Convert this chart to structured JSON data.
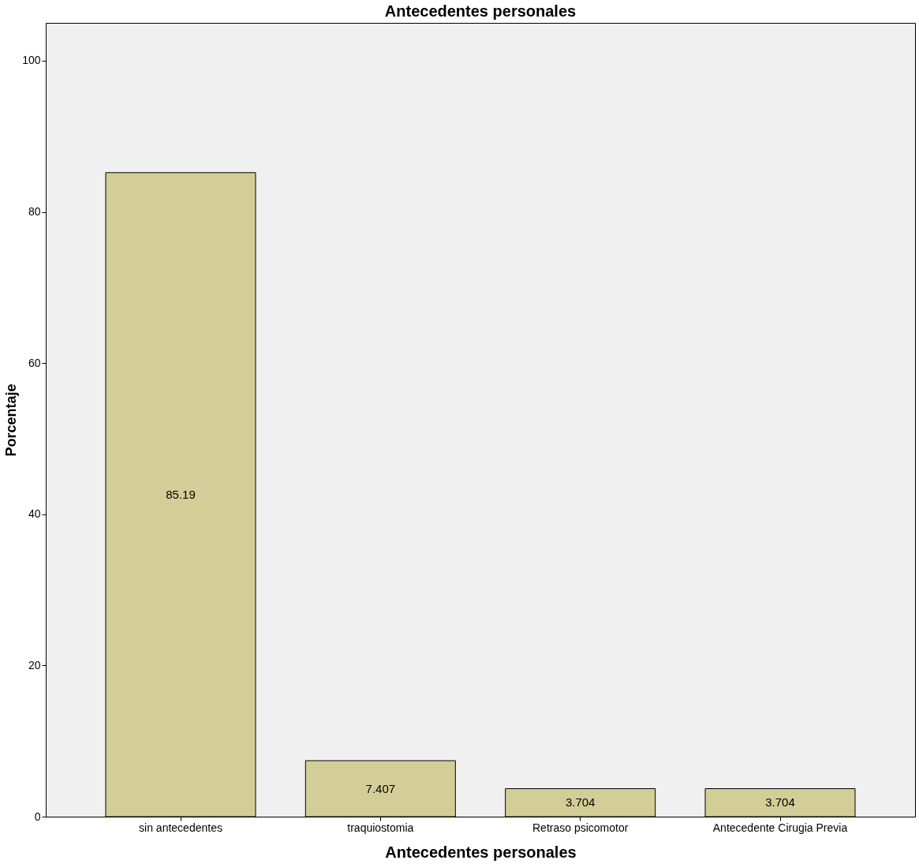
{
  "chart_data": {
    "type": "bar",
    "title": "Antecedentes personales",
    "xlabel": "Antecedentes personales",
    "ylabel": "Porcentaje",
    "categories": [
      "sin antecedentes",
      "traquiostomia",
      "Retraso psicomotor",
      "Antecedente Cirugia Previa"
    ],
    "values": [
      85.19,
      7.407,
      3.704,
      3.704
    ],
    "color": "#d3ce97",
    "ylim": [
      0,
      105
    ],
    "yticks": [
      0,
      20,
      40,
      60,
      80,
      100
    ],
    "grid": false,
    "data_labels": true
  }
}
